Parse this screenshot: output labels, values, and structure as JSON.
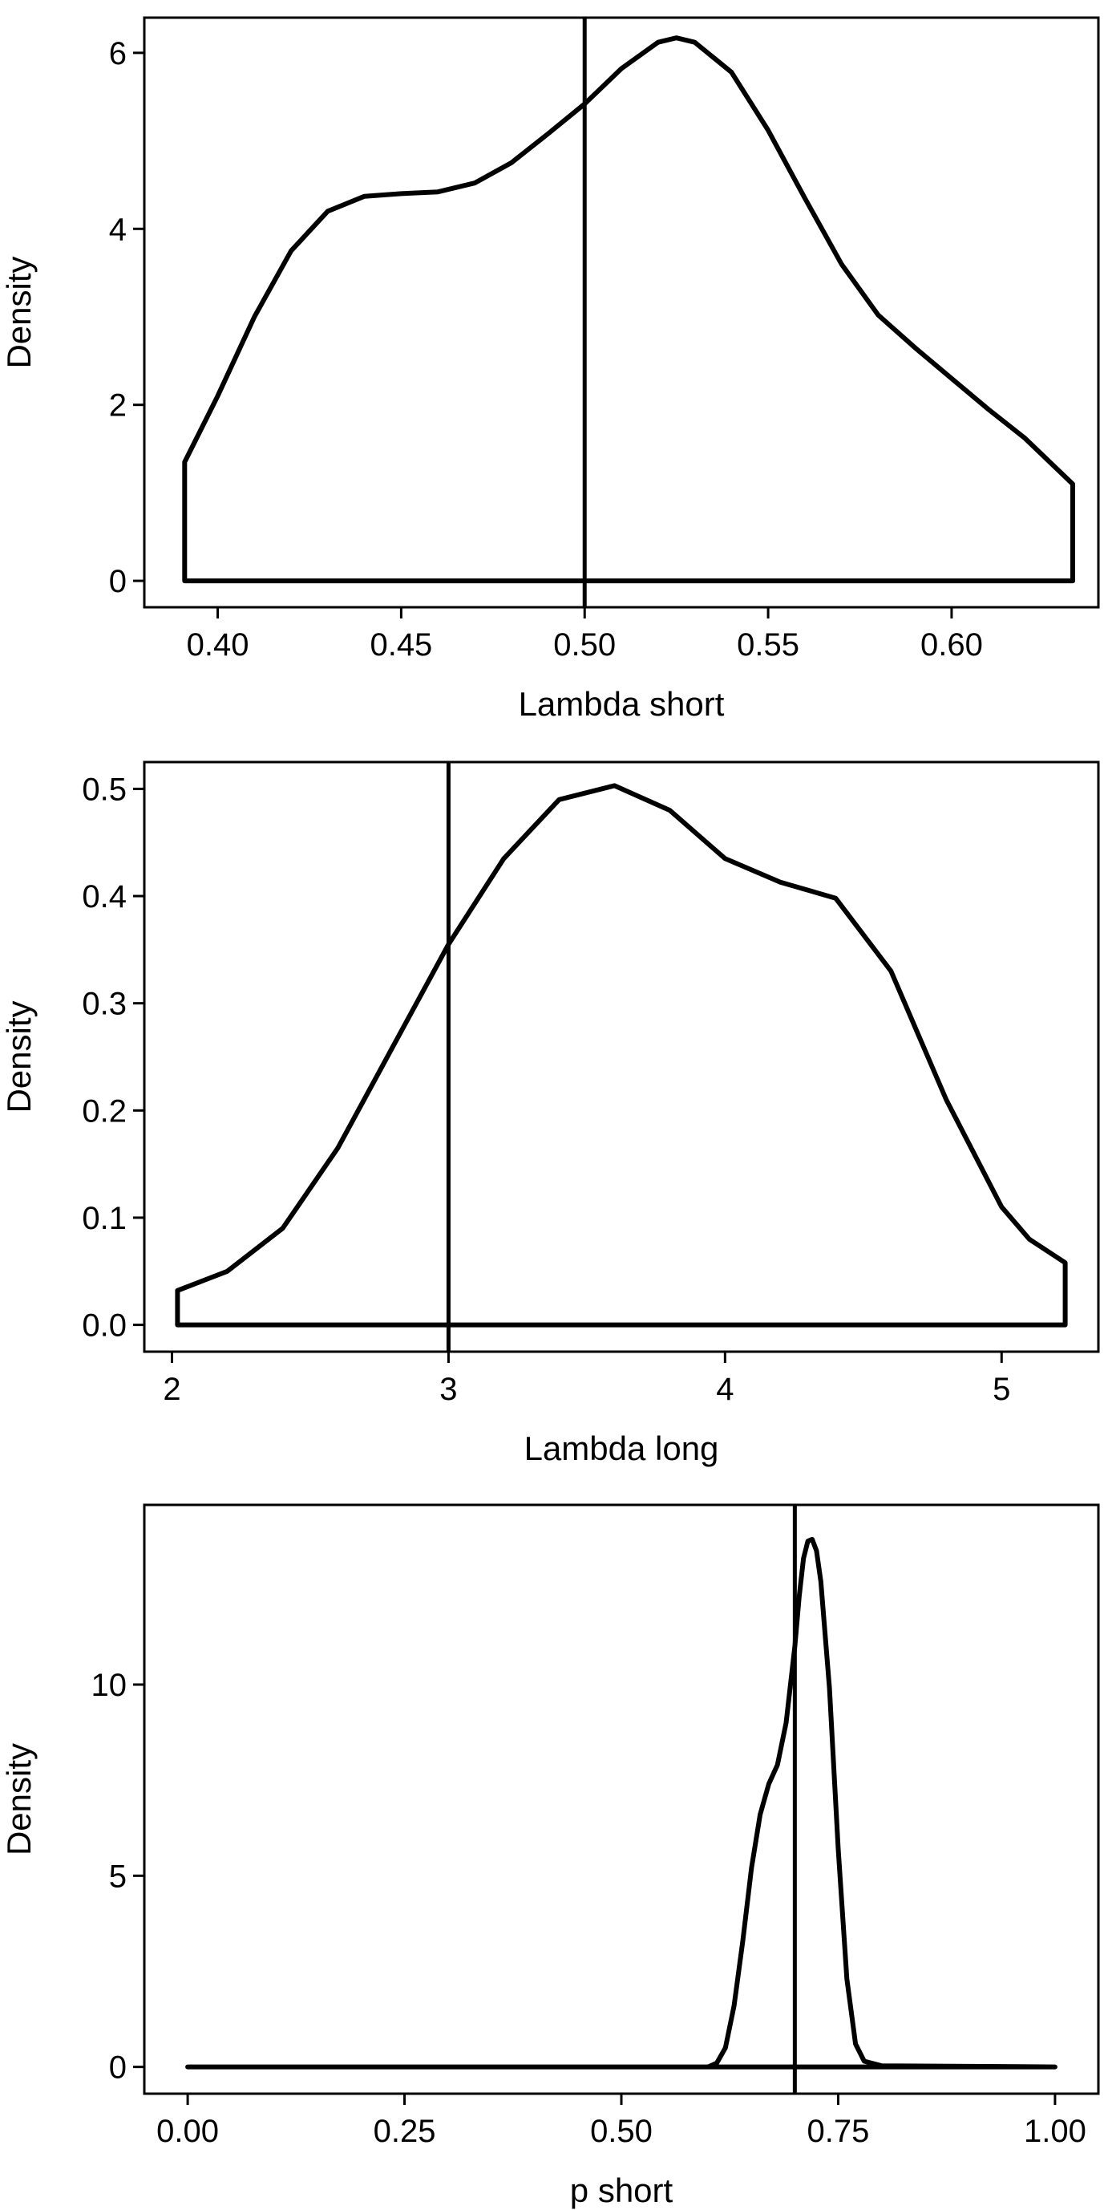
{
  "chart_data": [
    {
      "type": "line",
      "xlabel": "Lambda short",
      "ylabel": "Density",
      "xlim": [
        0.38,
        0.64
      ],
      "ylim": [
        -0.3,
        6.4
      ],
      "x_ticks": [
        0.4,
        0.45,
        0.5,
        0.55,
        0.6
      ],
      "x_tick_labels": [
        "0.40",
        "0.45",
        "0.50",
        "0.55",
        "0.60"
      ],
      "y_ticks": [
        0,
        2,
        4,
        6
      ],
      "y_tick_labels": [
        "0",
        "2",
        "4",
        "6"
      ],
      "reference_line_x": 0.5,
      "grid": false,
      "legend": "none",
      "series": [
        {
          "x": [
            0.391,
            0.391,
            0.4,
            0.41,
            0.42,
            0.43,
            0.44,
            0.45,
            0.46,
            0.47,
            0.48,
            0.49,
            0.5,
            0.51,
            0.52,
            0.525,
            0.53,
            0.54,
            0.55,
            0.56,
            0.57,
            0.58,
            0.59,
            0.6,
            0.61,
            0.62,
            0.633,
            0.633
          ],
          "y": [
            0,
            1.35,
            2.1,
            3.0,
            3.75,
            4.2,
            4.37,
            4.4,
            4.42,
            4.52,
            4.75,
            5.08,
            5.42,
            5.82,
            6.12,
            6.17,
            6.12,
            5.78,
            5.12,
            4.35,
            3.6,
            3.02,
            2.65,
            2.3,
            1.95,
            1.62,
            1.1,
            0
          ]
        }
      ]
    },
    {
      "type": "line",
      "xlabel": "Lambda long",
      "ylabel": "Density",
      "xlim": [
        1.9,
        5.35
      ],
      "ylim": [
        -0.025,
        0.525
      ],
      "x_ticks": [
        2,
        3,
        4,
        5
      ],
      "x_tick_labels": [
        "2",
        "3",
        "4",
        "5"
      ],
      "y_ticks": [
        0,
        0.1,
        0.2,
        0.3,
        0.4,
        0.5
      ],
      "y_tick_labels": [
        "0.0",
        "0.1",
        "0.2",
        "0.3",
        "0.4",
        "0.5"
      ],
      "reference_line_x": 3,
      "grid": false,
      "legend": "none",
      "series": [
        {
          "x": [
            2.02,
            2.02,
            2.2,
            2.4,
            2.6,
            2.8,
            3.0,
            3.2,
            3.4,
            3.6,
            3.8,
            4.0,
            4.2,
            4.4,
            4.6,
            4.8,
            5.0,
            5.1,
            5.23,
            5.23
          ],
          "y": [
            0,
            0.032,
            0.05,
            0.09,
            0.165,
            0.26,
            0.355,
            0.435,
            0.49,
            0.503,
            0.48,
            0.435,
            0.413,
            0.398,
            0.33,
            0.21,
            0.11,
            0.08,
            0.058,
            0
          ]
        }
      ]
    },
    {
      "type": "line",
      "xlabel": "p short",
      "ylabel": "Density",
      "xlim": [
        -0.05,
        1.05
      ],
      "ylim": [
        -0.7,
        14.7
      ],
      "x_ticks": [
        0,
        0.25,
        0.5,
        0.75,
        1
      ],
      "x_tick_labels": [
        "0.00",
        "0.25",
        "0.50",
        "0.75",
        "1.00"
      ],
      "y_ticks": [
        0,
        5,
        10
      ],
      "y_tick_labels": [
        "0",
        "5",
        "10"
      ],
      "reference_line_x": 0.7,
      "grid": false,
      "legend": "none",
      "series": [
        {
          "x": [
            0.0,
            0.6,
            0.61,
            0.62,
            0.63,
            0.64,
            0.65,
            0.66,
            0.67,
            0.68,
            0.69,
            0.7,
            0.705,
            0.71,
            0.715,
            0.72,
            0.725,
            0.73,
            0.74,
            0.75,
            0.76,
            0.77,
            0.78,
            0.8,
            1.0
          ],
          "y": [
            0,
            0,
            0.1,
            0.5,
            1.6,
            3.3,
            5.2,
            6.6,
            7.4,
            7.9,
            9.0,
            11.0,
            12.3,
            13.3,
            13.75,
            13.8,
            13.5,
            12.7,
            9.9,
            5.7,
            2.3,
            0.6,
            0.15,
            0.03,
            0
          ]
        }
      ]
    }
  ]
}
